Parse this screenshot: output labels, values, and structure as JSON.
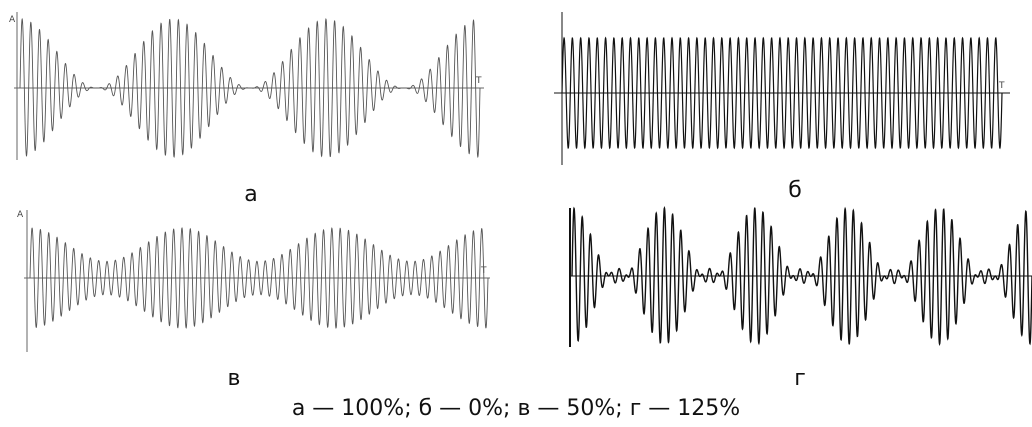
{
  "chart_data": [
    {
      "type": "line",
      "panel_label": "а",
      "modulation_depth_percent": 100,
      "yaxis_label": "A",
      "xaxis_label": "T",
      "carrier_cycles_visible": 53,
      "envelope_periods_visible": 3,
      "normalized_amplitude_range": [
        -1,
        1
      ],
      "line_color": "#555555",
      "grid": false
    },
    {
      "type": "line",
      "panel_label": "б",
      "modulation_depth_percent": 0,
      "yaxis_label": "",
      "xaxis_label": "T",
      "carrier_cycles_visible": 53,
      "envelope_periods_visible": 0,
      "normalized_amplitude_range": [
        -1,
        1
      ],
      "line_color": "#111111",
      "grid": false
    },
    {
      "type": "line",
      "panel_label": "в",
      "modulation_depth_percent": 50,
      "yaxis_label": "A",
      "xaxis_label": "T",
      "carrier_cycles_visible": 55,
      "envelope_periods_visible": 3,
      "normalized_amplitude_range": [
        -1,
        1
      ],
      "line_color": "#555555",
      "grid": false
    },
    {
      "type": "line",
      "panel_label": "г",
      "modulation_depth_percent": 125,
      "yaxis_label": "",
      "xaxis_label": "",
      "carrier_cycles_visible": 56,
      "envelope_periods_visible": 5,
      "normalized_amplitude_range": [
        -1,
        1
      ],
      "line_color": "#111111",
      "grid": false
    }
  ],
  "legend_text": "а — 100%; б — 0%; в — 50%; г — 125%"
}
